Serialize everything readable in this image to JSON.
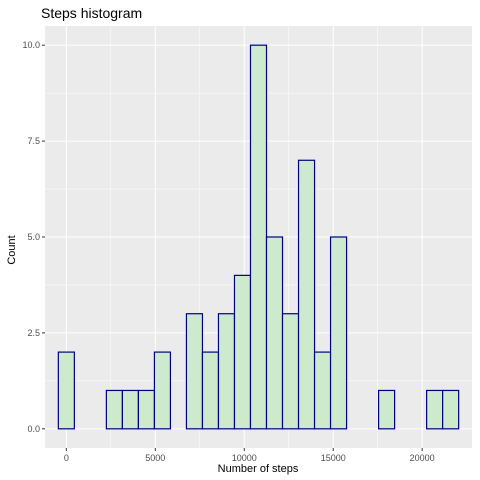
{
  "chart_data": {
    "type": "bar",
    "title": "Steps histogram",
    "xlabel": "Number of steps",
    "ylabel": "Count",
    "xlim": [
      -1200,
      22800
    ],
    "ylim": [
      -0.5,
      10.5
    ],
    "x_ticks": [
      0,
      5000,
      10000,
      15000,
      20000
    ],
    "x_tick_labels": [
      "0",
      "5000",
      "10000",
      "15000",
      "20000"
    ],
    "y_ticks": [
      0,
      2.5,
      5,
      7.5,
      10
    ],
    "y_tick_labels": [
      "0.0",
      "2.5",
      "5.0",
      "7.5",
      "10.0"
    ],
    "grid": true,
    "bin_width": 900,
    "bin_centers": [
      0,
      900,
      1800,
      2700,
      3600,
      4500,
      5400,
      6300,
      7200,
      8100,
      9000,
      9900,
      10800,
      11700,
      12600,
      13500,
      14400,
      15300,
      16200,
      17100,
      18000,
      18900,
      19800,
      20700,
      21600
    ],
    "counts": [
      2,
      0,
      0,
      1,
      1,
      1,
      2,
      0,
      3,
      2,
      3,
      4,
      10,
      5,
      3,
      7,
      2,
      5,
      0,
      0,
      1,
      0,
      0,
      1,
      1
    ],
    "colors": {
      "panel": "#ebebeb",
      "grid_major": "#ffffff",
      "bar_fill": "#cdeacd",
      "bar_stroke": "#000080"
    }
  }
}
